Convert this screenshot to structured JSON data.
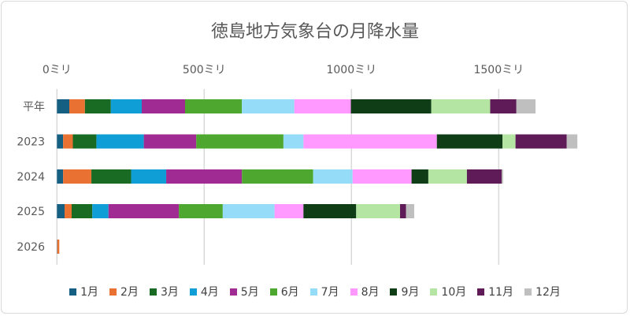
{
  "chart_data": {
    "type": "bar",
    "orientation": "horizontal",
    "stacked": true,
    "title": "徳島地方気象台の月降水量",
    "categories": [
      "平年",
      "2023",
      "2024",
      "2025",
      "2026"
    ],
    "xlim": [
      0,
      1900
    ],
    "x_ticks": [
      0,
      500,
      1000,
      1500
    ],
    "x_tick_labels": [
      "0ミリ",
      "500ミリ",
      "1000ミリ",
      "1500ミリ"
    ],
    "x_axis_position": "top",
    "grid": true,
    "legend_position": "bottom",
    "series": [
      {
        "name": "1月",
        "color": "#156082",
        "values": [
          42,
          21,
          21,
          26,
          1
        ]
      },
      {
        "name": "2月",
        "color": "#e97132",
        "values": [
          53,
          33,
          96,
          24,
          7
        ]
      },
      {
        "name": "3月",
        "color": "#196b24",
        "values": [
          88,
          80,
          135,
          70,
          0
        ]
      },
      {
        "name": "4月",
        "color": "#0f9ed5",
        "values": [
          105,
          161,
          119,
          55,
          0
        ]
      },
      {
        "name": "5月",
        "color": "#a02b93",
        "values": [
          147,
          178,
          257,
          239,
          0
        ]
      },
      {
        "name": "6月",
        "color": "#4ea72e",
        "values": [
          193,
          296,
          242,
          149,
          0
        ]
      },
      {
        "name": "7月",
        "color": "#94dcf8",
        "values": [
          178,
          68,
          134,
          176,
          0
        ]
      },
      {
        "name": "8月",
        "color": "#ff99ff",
        "values": [
          192,
          453,
          200,
          98,
          0
        ]
      },
      {
        "name": "9月",
        "color": "#0e3d16",
        "values": [
          273,
          223,
          57,
          179,
          0
        ]
      },
      {
        "name": "10月",
        "color": "#b5e5a3",
        "values": [
          200,
          44,
          131,
          149,
          0
        ]
      },
      {
        "name": "11月",
        "color": "#5f1b57",
        "values": [
          89,
          174,
          118,
          20,
          0
        ]
      },
      {
        "name": "12月",
        "color": "#bfbfbf",
        "values": [
          65,
          36,
          5,
          28,
          0
        ]
      }
    ]
  }
}
